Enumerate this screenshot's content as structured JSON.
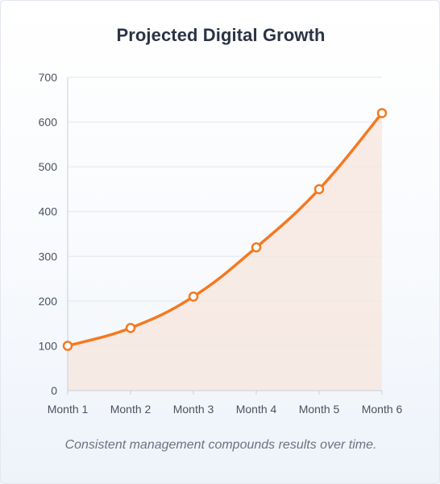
{
  "chart_data": {
    "type": "line",
    "title": "Projected Digital Growth",
    "xlabel": "",
    "ylabel": "",
    "categories": [
      "Month 1",
      "Month 2",
      "Month 3",
      "Month 4",
      "Month 5",
      "Month 6"
    ],
    "series": [
      {
        "values": [
          100,
          140,
          210,
          320,
          450,
          620
        ]
      }
    ],
    "ylim": [
      0,
      700
    ],
    "yticks": [
      0,
      100,
      200,
      300,
      400,
      500,
      600,
      700
    ],
    "grid": true,
    "area_fill": true,
    "legend": "none",
    "colors": {
      "line": "#f47920",
      "area": "#f7e6dd",
      "grid": "#e3e6eb",
      "axis": "#c9ced6"
    }
  },
  "caption": "Consistent management compounds results over time."
}
